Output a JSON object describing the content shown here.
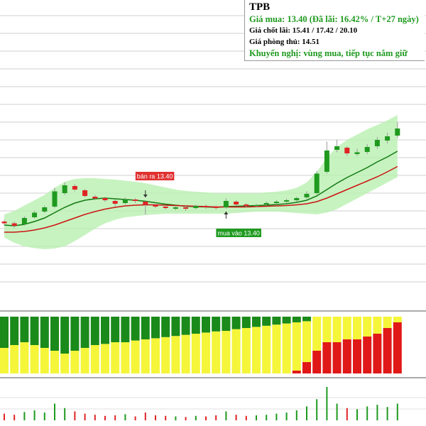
{
  "info": {
    "title": "TPB",
    "lines": [
      "Giá mua: 13.40 (Đã lãi: 16.42% / T+27 ngày)",
      "Giá chốt lãi: 15.41 / 17.42 / 20.10",
      "Giá phòng thủ: 14.51",
      "Khuyến nghị: vùng mua, tiếp tục nắm giữ"
    ]
  },
  "chart_data": [
    {
      "type": "candlestick",
      "open": [
        13.0,
        12.95,
        12.92,
        13.12,
        13.28,
        13.42,
        13.8,
        14.0,
        13.88,
        13.7,
        13.66,
        13.58,
        13.52,
        13.62,
        13.56,
        13.46,
        13.42,
        13.36,
        13.4,
        13.38,
        13.44,
        13.42,
        13.4,
        13.56,
        13.48,
        13.44,
        13.48,
        13.52,
        13.56,
        13.6,
        13.68,
        13.8,
        14.4,
        15.02,
        15.08,
        14.9,
        14.96,
        15.12,
        15.28,
        15.42
      ],
      "high": [
        13.05,
        13.0,
        13.15,
        13.3,
        13.45,
        13.95,
        14.1,
        14.05,
        13.92,
        13.75,
        13.7,
        13.62,
        13.68,
        13.66,
        13.6,
        13.5,
        13.46,
        13.45,
        13.44,
        13.48,
        13.48,
        13.46,
        13.65,
        13.6,
        13.52,
        13.5,
        13.56,
        13.6,
        13.64,
        13.7,
        13.85,
        14.42,
        15.25,
        15.3,
        15.12,
        15.05,
        15.18,
        15.38,
        15.5,
        15.8
      ],
      "low": [
        12.9,
        12.82,
        12.88,
        13.08,
        13.24,
        13.38,
        13.75,
        13.85,
        13.68,
        13.6,
        13.55,
        13.42,
        13.48,
        13.52,
        13.2,
        13.38,
        13.34,
        13.32,
        13.3,
        13.34,
        13.36,
        13.34,
        13.36,
        13.44,
        13.4,
        13.4,
        13.45,
        13.48,
        13.52,
        13.56,
        13.64,
        13.76,
        14.35,
        14.95,
        14.85,
        14.85,
        14.9,
        15.05,
        15.2,
        15.35
      ],
      "close": [
        12.95,
        12.88,
        13.1,
        13.25,
        13.4,
        13.85,
        14.02,
        13.9,
        13.72,
        13.65,
        13.6,
        13.5,
        13.62,
        13.58,
        13.48,
        13.42,
        13.38,
        13.4,
        13.36,
        13.44,
        13.4,
        13.38,
        13.58,
        13.48,
        13.44,
        13.46,
        13.52,
        13.56,
        13.6,
        13.66,
        13.78,
        14.35,
        15.0,
        15.12,
        14.92,
        14.95,
        15.1,
        15.3,
        15.4,
        15.62
      ],
      "up_color": "#1f9a1f",
      "down_color": "#e02424",
      "band": {
        "color": "#b9f0b0",
        "upper": [
          13.2,
          13.3,
          13.45,
          13.6,
          13.75,
          13.95,
          14.12,
          14.2,
          14.22,
          14.22,
          14.2,
          14.18,
          14.15,
          14.12,
          14.08,
          14.02,
          13.96,
          13.9,
          13.86,
          13.84,
          13.82,
          13.8,
          13.8,
          13.8,
          13.8,
          13.8,
          13.82,
          13.84,
          13.88,
          13.95,
          14.1,
          14.4,
          14.8,
          15.1,
          15.3,
          15.45,
          15.6,
          15.72,
          15.85,
          16.0
        ],
        "lower": [
          12.55,
          12.4,
          12.3,
          12.25,
          12.22,
          12.24,
          12.3,
          12.45,
          12.62,
          12.8,
          12.95,
          13.05,
          13.12,
          13.15,
          13.18,
          13.2,
          13.22,
          13.22,
          13.22,
          13.22,
          13.22,
          13.22,
          13.22,
          13.24,
          13.26,
          13.28,
          13.28,
          13.28,
          13.26,
          13.24,
          13.22,
          13.2,
          13.25,
          13.35,
          13.5,
          13.65,
          13.8,
          13.95,
          14.1,
          14.25
        ]
      },
      "moving_averages": [
        {
          "color": "#127a12",
          "values": [
            12.9,
            12.88,
            12.92,
            13.0,
            13.1,
            13.25,
            13.4,
            13.52,
            13.6,
            13.64,
            13.66,
            13.64,
            13.62,
            13.6,
            13.57,
            13.53,
            13.49,
            13.46,
            13.43,
            13.42,
            13.41,
            13.4,
            13.42,
            13.43,
            13.44,
            13.45,
            13.46,
            13.48,
            13.5,
            13.54,
            13.6,
            13.72,
            13.9,
            14.08,
            14.24,
            14.38,
            14.52,
            14.68,
            14.82,
            14.98
          ]
        },
        {
          "color": "#cc1414",
          "values": [
            12.7,
            12.7,
            12.72,
            12.76,
            12.82,
            12.9,
            13.0,
            13.1,
            13.2,
            13.28,
            13.35,
            13.4,
            13.44,
            13.46,
            13.47,
            13.47,
            13.46,
            13.45,
            13.44,
            13.43,
            13.42,
            13.41,
            13.41,
            13.41,
            13.41,
            13.42,
            13.43,
            13.44,
            13.45,
            13.47,
            13.5,
            13.56,
            13.66,
            13.78,
            13.9,
            14.02,
            14.14,
            14.26,
            14.4,
            14.55
          ]
        }
      ],
      "annotations": [
        {
          "text": "bán ra 13.40",
          "index": 14,
          "color": "#e03030",
          "direction": "down"
        },
        {
          "text": "mua vào 13.40",
          "index": 22,
          "color": "#1f9a1f",
          "direction": "up"
        }
      ],
      "ylim": [
        10.64,
        19.24
      ],
      "yticks": [
        11.3,
        11.8,
        12.3,
        12.8,
        13.3,
        13.8,
        14.3,
        14.8,
        15.3,
        15.8,
        16.3,
        16.8,
        17.3,
        17.8,
        18.3,
        18.8
      ],
      "grid": true
    },
    {
      "type": "stacked_bar",
      "ylim": [
        0,
        100
      ],
      "series": [
        {
          "color": "#e01818",
          "values": [
            0,
            0,
            0,
            0,
            0,
            0,
            0,
            0,
            0,
            0,
            0,
            0,
            0,
            0,
            0,
            0,
            0,
            0,
            0,
            0,
            0,
            0,
            0,
            0,
            0,
            0,
            0,
            0,
            0,
            5,
            20,
            40,
            55,
            55,
            60,
            60,
            65,
            70,
            80,
            90
          ]
        },
        {
          "color": "#f5f53a",
          "values": [
            45,
            50,
            55,
            50,
            45,
            40,
            35,
            40,
            45,
            50,
            52,
            55,
            55,
            58,
            60,
            62,
            64,
            66,
            68,
            70,
            72,
            74,
            75,
            78,
            80,
            82,
            84,
            86,
            88,
            85,
            72,
            60,
            45,
            45,
            40,
            40,
            35,
            30,
            20,
            10
          ]
        },
        {
          "color": "#1a8a1a",
          "values": [
            55,
            50,
            45,
            50,
            55,
            60,
            65,
            60,
            55,
            50,
            48,
            45,
            45,
            42,
            40,
            38,
            36,
            34,
            32,
            30,
            28,
            26,
            25,
            22,
            20,
            18,
            16,
            14,
            12,
            10,
            8,
            0,
            0,
            0,
            0,
            0,
            0,
            0,
            0,
            0
          ]
        }
      ]
    },
    {
      "type": "volume",
      "ylim": [
        0,
        60
      ],
      "values": [
        12,
        10,
        15,
        18,
        14,
        30,
        22,
        16,
        12,
        10,
        8,
        9,
        11,
        7,
        14,
        9,
        8,
        7,
        6,
        8,
        7,
        9,
        16,
        10,
        8,
        9,
        10,
        12,
        14,
        18,
        25,
        38,
        60,
        30,
        22,
        20,
        25,
        28,
        24,
        30
      ]
    }
  ]
}
